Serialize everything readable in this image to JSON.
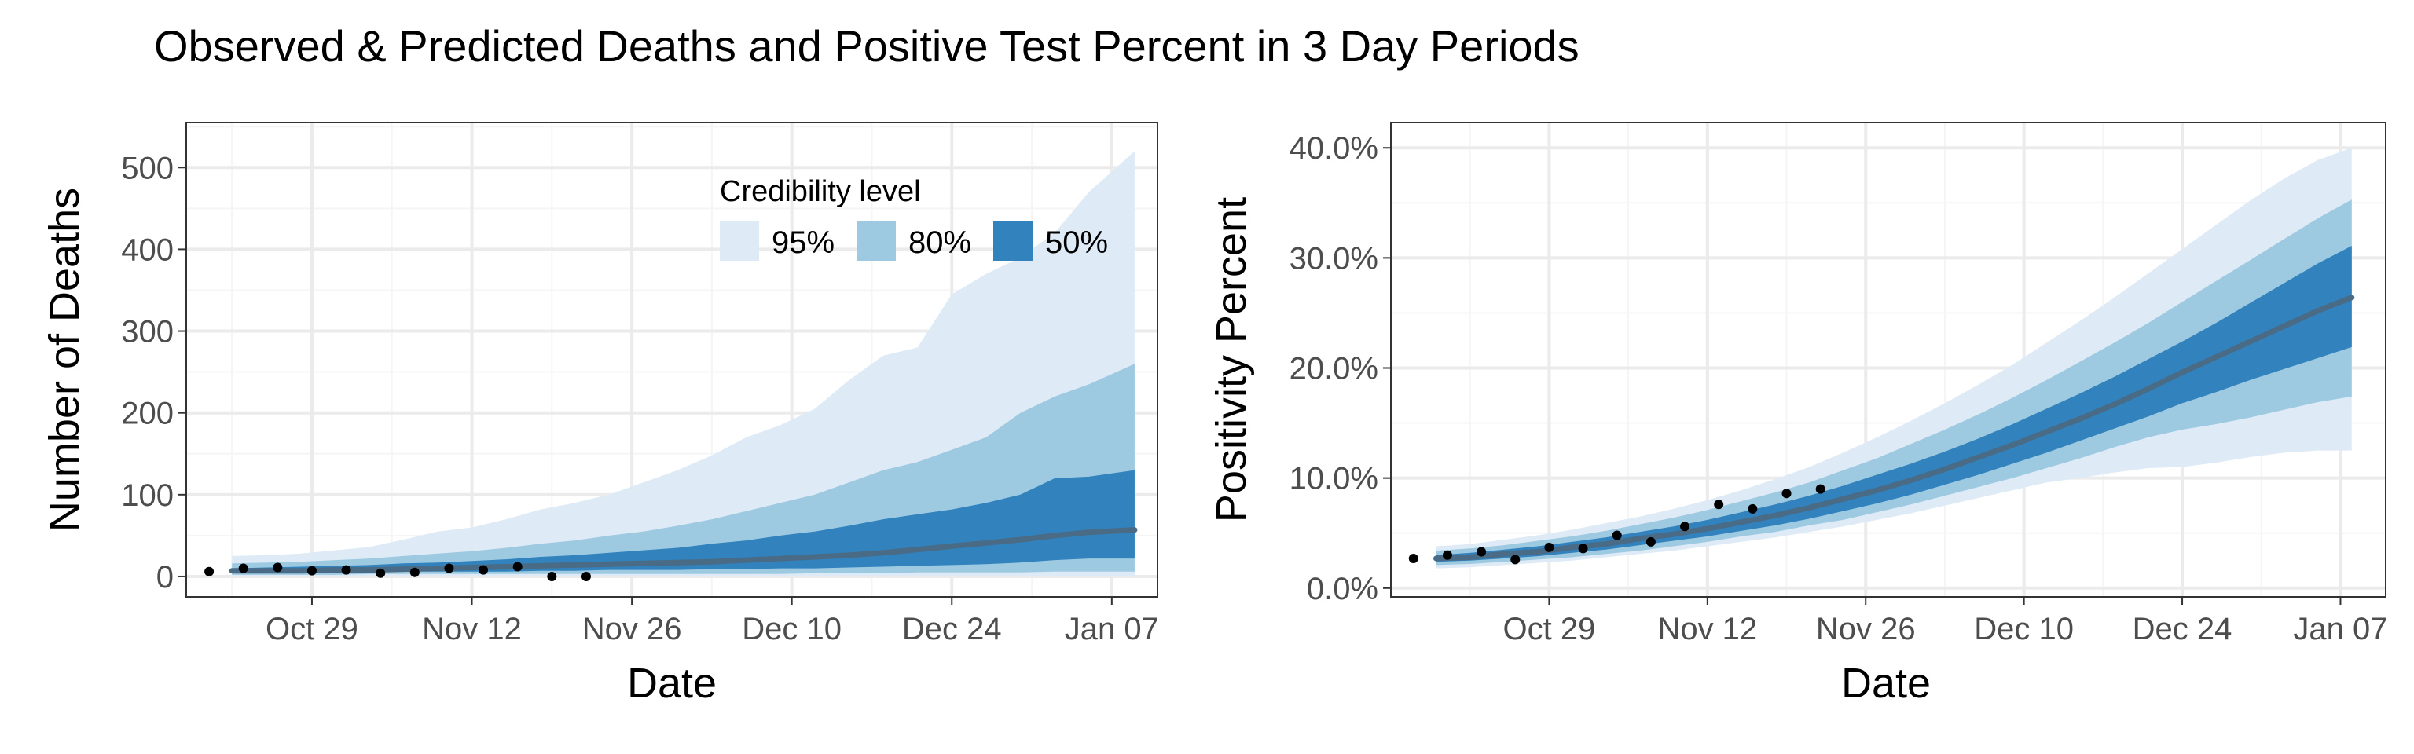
{
  "title": "Observed & Predicted Deaths and Positive Test Percent in 3 Day Periods",
  "colors": {
    "band95": "#deebf7",
    "band80": "#9ecae1",
    "band50": "#3182bd",
    "median": "#4a6b85",
    "observed": "#000000",
    "grid_major": "#ebebeb",
    "grid_minor": "#f5f5f5",
    "panel_border": "#333333"
  },
  "legend": {
    "title": "Credibility level",
    "items": [
      {
        "label": "95%",
        "color": "#deebf7"
      },
      {
        "label": "80%",
        "color": "#9ecae1"
      },
      {
        "label": "50%",
        "color": "#3182bd"
      }
    ],
    "placement": "inside top-right of left panel"
  },
  "chart_data": [
    {
      "type": "area",
      "title": "",
      "xlabel": "Date",
      "ylabel": "Number of Deaths",
      "x_ticks": [
        "Oct 29",
        "Nov 12",
        "Nov 26",
        "Dec 10",
        "Dec 24",
        "Jan 07"
      ],
      "x_tick_dates": [
        "2020-10-29",
        "2020-11-12",
        "2020-11-26",
        "2020-12-10",
        "2020-12-24",
        "2021-01-07"
      ],
      "xlim": [
        "2020-10-18",
        "2021-01-11"
      ],
      "y_ticks": [
        "0",
        "100",
        "200",
        "300",
        "400",
        "500"
      ],
      "y_tick_values": [
        0,
        100,
        200,
        300,
        400,
        500
      ],
      "ylim": [
        -25,
        555
      ],
      "grid": true,
      "x": [
        "2020-10-22",
        "2020-10-25",
        "2020-10-28",
        "2020-10-31",
        "2020-11-03",
        "2020-11-06",
        "2020-11-09",
        "2020-11-12",
        "2020-11-15",
        "2020-11-18",
        "2020-11-21",
        "2020-11-24",
        "2020-11-27",
        "2020-11-30",
        "2020-12-03",
        "2020-12-06",
        "2020-12-09",
        "2020-12-12",
        "2020-12-15",
        "2020-12-18",
        "2020-12-21",
        "2020-12-24",
        "2020-12-27",
        "2020-12-30",
        "2021-01-02",
        "2021-01-05",
        "2021-01-09"
      ],
      "bands": [
        {
          "level": "95%",
          "lower": [
            0,
            0,
            0,
            0,
            0,
            0,
            0,
            0,
            0,
            0,
            0,
            0,
            0,
            0,
            0,
            0,
            0,
            0,
            0,
            0,
            0,
            0,
            0,
            0,
            0,
            0,
            0
          ],
          "upper": [
            25,
            26,
            28,
            32,
            36,
            45,
            55,
            60,
            70,
            82,
            90,
            100,
            115,
            130,
            148,
            170,
            185,
            205,
            240,
            270,
            280,
            345,
            370,
            390,
            420,
            470,
            520
          ]
        },
        {
          "level": "80%",
          "lower": [
            2,
            2,
            2,
            2,
            3,
            3,
            3,
            3,
            3,
            3,
            3,
            3,
            3,
            3,
            3,
            3,
            3,
            4,
            4,
            4,
            5,
            5,
            5,
            5,
            6,
            6,
            6
          ],
          "upper": [
            16,
            17,
            18,
            20,
            22,
            25,
            28,
            31,
            35,
            40,
            44,
            50,
            55,
            62,
            70,
            80,
            90,
            100,
            115,
            130,
            140,
            155,
            170,
            200,
            220,
            235,
            260
          ]
        },
        {
          "level": "50%",
          "lower": [
            4,
            4,
            4,
            5,
            5,
            6,
            6,
            6,
            6,
            7,
            7,
            8,
            8,
            8,
            9,
            9,
            10,
            10,
            11,
            12,
            13,
            14,
            15,
            17,
            20,
            22,
            22
          ],
          "upper": [
            10,
            11,
            12,
            13,
            14,
            16,
            17,
            19,
            21,
            24,
            26,
            29,
            32,
            35,
            40,
            44,
            50,
            55,
            62,
            70,
            76,
            82,
            90,
            100,
            120,
            122,
            130
          ]
        }
      ],
      "median": [
        7,
        7,
        7,
        8,
        8,
        9,
        10,
        11,
        12,
        13,
        14,
        15,
        16,
        17,
        18,
        20,
        22,
        24,
        26,
        29,
        33,
        37,
        41,
        45,
        50,
        54,
        57
      ],
      "observed": {
        "x": [
          "2020-10-20",
          "2020-10-23",
          "2020-10-26",
          "2020-10-29",
          "2020-11-01",
          "2020-11-04",
          "2020-11-07",
          "2020-11-10",
          "2020-11-13",
          "2020-11-16",
          "2020-11-19",
          "2020-11-22"
        ],
        "y": [
          6,
          10,
          11,
          7,
          8,
          4,
          5,
          10,
          8,
          12,
          0,
          0
        ]
      }
    },
    {
      "type": "area",
      "title": "",
      "xlabel": "Date",
      "ylabel": "Positivity Percent",
      "x_ticks": [
        "Oct 29",
        "Nov 12",
        "Nov 26",
        "Dec 10",
        "Dec 24",
        "Jan 07"
      ],
      "x_tick_dates": [
        "2020-10-29",
        "2020-11-12",
        "2020-11-26",
        "2020-12-10",
        "2020-12-24",
        "2021-01-07"
      ],
      "xlim": [
        "2020-10-15",
        "2021-01-11"
      ],
      "y_ticks": [
        "0.0%",
        "10.0%",
        "20.0%",
        "30.0%",
        "40.0%"
      ],
      "y_tick_values": [
        0,
        10,
        20,
        30,
        40
      ],
      "ylim": [
        -0.8,
        42.3
      ],
      "grid": true,
      "x": [
        "2020-10-19",
        "2020-10-22",
        "2020-10-25",
        "2020-10-28",
        "2020-10-31",
        "2020-11-03",
        "2020-11-06",
        "2020-11-09",
        "2020-11-12",
        "2020-11-15",
        "2020-11-18",
        "2020-11-21",
        "2020-11-24",
        "2020-11-27",
        "2020-11-30",
        "2020-12-03",
        "2020-12-06",
        "2020-12-09",
        "2020-12-12",
        "2020-12-15",
        "2020-12-18",
        "2020-12-21",
        "2020-12-24",
        "2020-12-27",
        "2020-12-30",
        "2021-01-02",
        "2021-01-05",
        "2021-01-08"
      ],
      "bands": [
        {
          "level": "95%",
          "lower": [
            1.8,
            1.9,
            2.1,
            2.3,
            2.5,
            2.8,
            3.1,
            3.4,
            3.8,
            4.2,
            4.6,
            5.1,
            5.6,
            6.2,
            6.8,
            7.5,
            8.2,
            8.9,
            9.6,
            10.0,
            10.5,
            10.9,
            11.0,
            11.4,
            11.9,
            12.3,
            12.5,
            12.5
          ],
          "upper": [
            3.8,
            4.0,
            4.4,
            4.8,
            5.3,
            5.9,
            6.5,
            7.2,
            8.0,
            8.9,
            9.9,
            11.0,
            12.3,
            13.7,
            15.2,
            16.8,
            18.5,
            20.3,
            22.3,
            24.3,
            26.4,
            28.6,
            30.8,
            33.0,
            35.2,
            37.2,
            38.9,
            40.0
          ]
        },
        {
          "level": "80%",
          "lower": [
            2.1,
            2.2,
            2.4,
            2.6,
            2.8,
            3.1,
            3.4,
            3.8,
            4.2,
            4.7,
            5.1,
            5.7,
            6.2,
            6.9,
            7.6,
            8.4,
            9.2,
            10.0,
            10.9,
            11.8,
            12.8,
            13.7,
            14.4,
            14.9,
            15.5,
            16.2,
            16.9,
            17.4
          ],
          "upper": [
            3.4,
            3.6,
            3.9,
            4.3,
            4.7,
            5.2,
            5.8,
            6.4,
            7.1,
            7.9,
            8.7,
            9.6,
            10.7,
            11.8,
            13.1,
            14.4,
            15.8,
            17.3,
            18.9,
            20.6,
            22.3,
            24.1,
            26.0,
            27.9,
            29.8,
            31.7,
            33.6,
            35.3
          ]
        },
        {
          "level": "50%",
          "lower": [
            2.4,
            2.5,
            2.7,
            2.9,
            3.2,
            3.5,
            3.9,
            4.3,
            4.7,
            5.2,
            5.7,
            6.3,
            7.0,
            7.7,
            8.5,
            9.4,
            10.3,
            11.3,
            12.3,
            13.4,
            14.5,
            15.6,
            16.8,
            17.8,
            18.9,
            19.9,
            20.9,
            21.9
          ],
          "upper": [
            3.0,
            3.2,
            3.5,
            3.8,
            4.2,
            4.6,
            5.1,
            5.6,
            6.2,
            6.9,
            7.6,
            8.4,
            9.3,
            10.3,
            11.3,
            12.4,
            13.6,
            14.9,
            16.3,
            17.7,
            19.2,
            20.8,
            22.4,
            24.1,
            25.9,
            27.7,
            29.5,
            31.1
          ]
        }
      ],
      "median": [
        2.7,
        2.8,
        3.1,
        3.3,
        3.7,
        4.0,
        4.5,
        4.9,
        5.4,
        6.0,
        6.6,
        7.3,
        8.1,
        8.9,
        9.8,
        10.8,
        11.9,
        13.0,
        14.2,
        15.4,
        16.7,
        18.1,
        19.6,
        21.0,
        22.4,
        23.8,
        25.2,
        26.4
      ],
      "observed": {
        "x": [
          "2020-10-17",
          "2020-10-20",
          "2020-10-23",
          "2020-10-26",
          "2020-10-29",
          "2020-11-01",
          "2020-11-04",
          "2020-11-07",
          "2020-11-10",
          "2020-11-13",
          "2020-11-16",
          "2020-11-19",
          "2020-11-22"
        ],
        "y": [
          2.7,
          3.0,
          3.3,
          2.6,
          3.7,
          3.6,
          4.8,
          4.2,
          5.6,
          7.6,
          7.2,
          8.6,
          9.0
        ]
      }
    }
  ]
}
